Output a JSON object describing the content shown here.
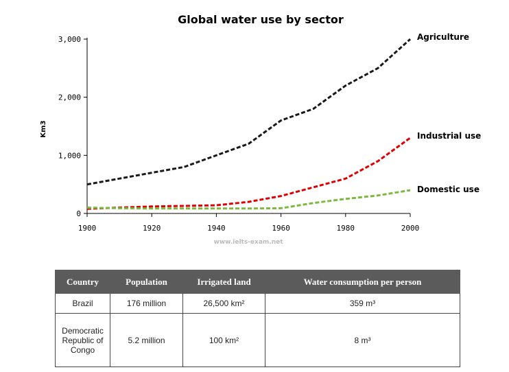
{
  "chart_data": {
    "type": "line",
    "title": "Global water use by sector",
    "xlabel": "",
    "ylabel": "Km3",
    "x": [
      1900,
      1910,
      1920,
      1930,
      1940,
      1950,
      1960,
      1970,
      1980,
      1990,
      2000
    ],
    "xticks": [
      "1900",
      "1920",
      "1940",
      "1960",
      "1980",
      "2000"
    ],
    "xlim": [
      1900,
      2000
    ],
    "yticks": [
      "0",
      "1,000",
      "2,000",
      "3,000"
    ],
    "ylim": [
      0,
      3000
    ],
    "grid": false,
    "series": [
      {
        "name": "Agriculture",
        "color": "#1a1a1a",
        "values": [
          500,
          600,
          700,
          800,
          1000,
          1200,
          1600,
          1800,
          2200,
          2500,
          3000
        ]
      },
      {
        "name": "Industrial use",
        "color": "#e00000",
        "values": [
          80,
          100,
          120,
          130,
          140,
          200,
          300,
          450,
          600,
          900,
          1300
        ]
      },
      {
        "name": "Domestic use",
        "color": "#7cba3d",
        "values": [
          100,
          90,
          85,
          85,
          85,
          85,
          90,
          180,
          250,
          310,
          400
        ]
      }
    ],
    "watermark": "www.ielts-exam.net"
  },
  "table": {
    "headers": [
      "Country",
      "Population",
      "Irrigated land",
      "Water consumption per person"
    ],
    "rows": [
      [
        "Brazil",
        "176 million",
        "26,500 km²",
        "359 m³"
      ],
      [
        "Democratic Republic of Congo",
        "5.2 million",
        "100 km²",
        "8 m³"
      ]
    ]
  }
}
